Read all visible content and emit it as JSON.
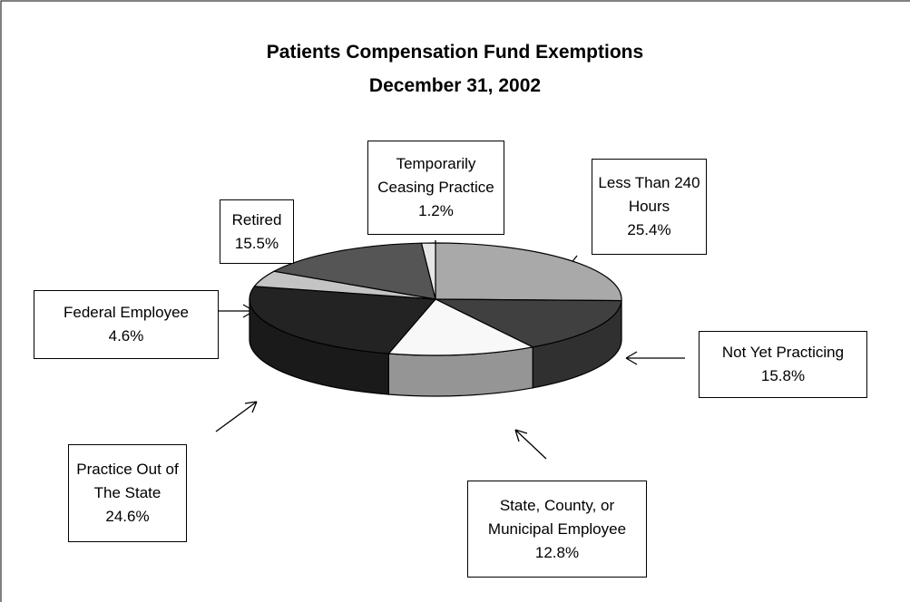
{
  "chart_data": {
    "type": "pie",
    "title": "Patients Compensation Fund Exemptions",
    "subtitle": "December 31, 2002",
    "categories": [
      "Less Than 240 Hours",
      "Not Yet Practicing",
      "State, County, or Municipal Employee",
      "Practice Out of The State",
      "Federal Employee",
      "Retired",
      "Temporarily Ceasing Practice"
    ],
    "values": [
      25.4,
      15.8,
      12.8,
      24.6,
      4.6,
      15.5,
      1.2
    ],
    "value_labels": [
      "25.4%",
      "15.8%",
      "12.8%",
      "24.6%",
      "4.6%",
      "15.5%",
      "1.2%"
    ],
    "colors": [
      "#a9a9a9",
      "#404040",
      "#f8f8f8",
      "#232323",
      "#c4c4c4",
      "#555555",
      "#e6e6e6"
    ]
  }
}
